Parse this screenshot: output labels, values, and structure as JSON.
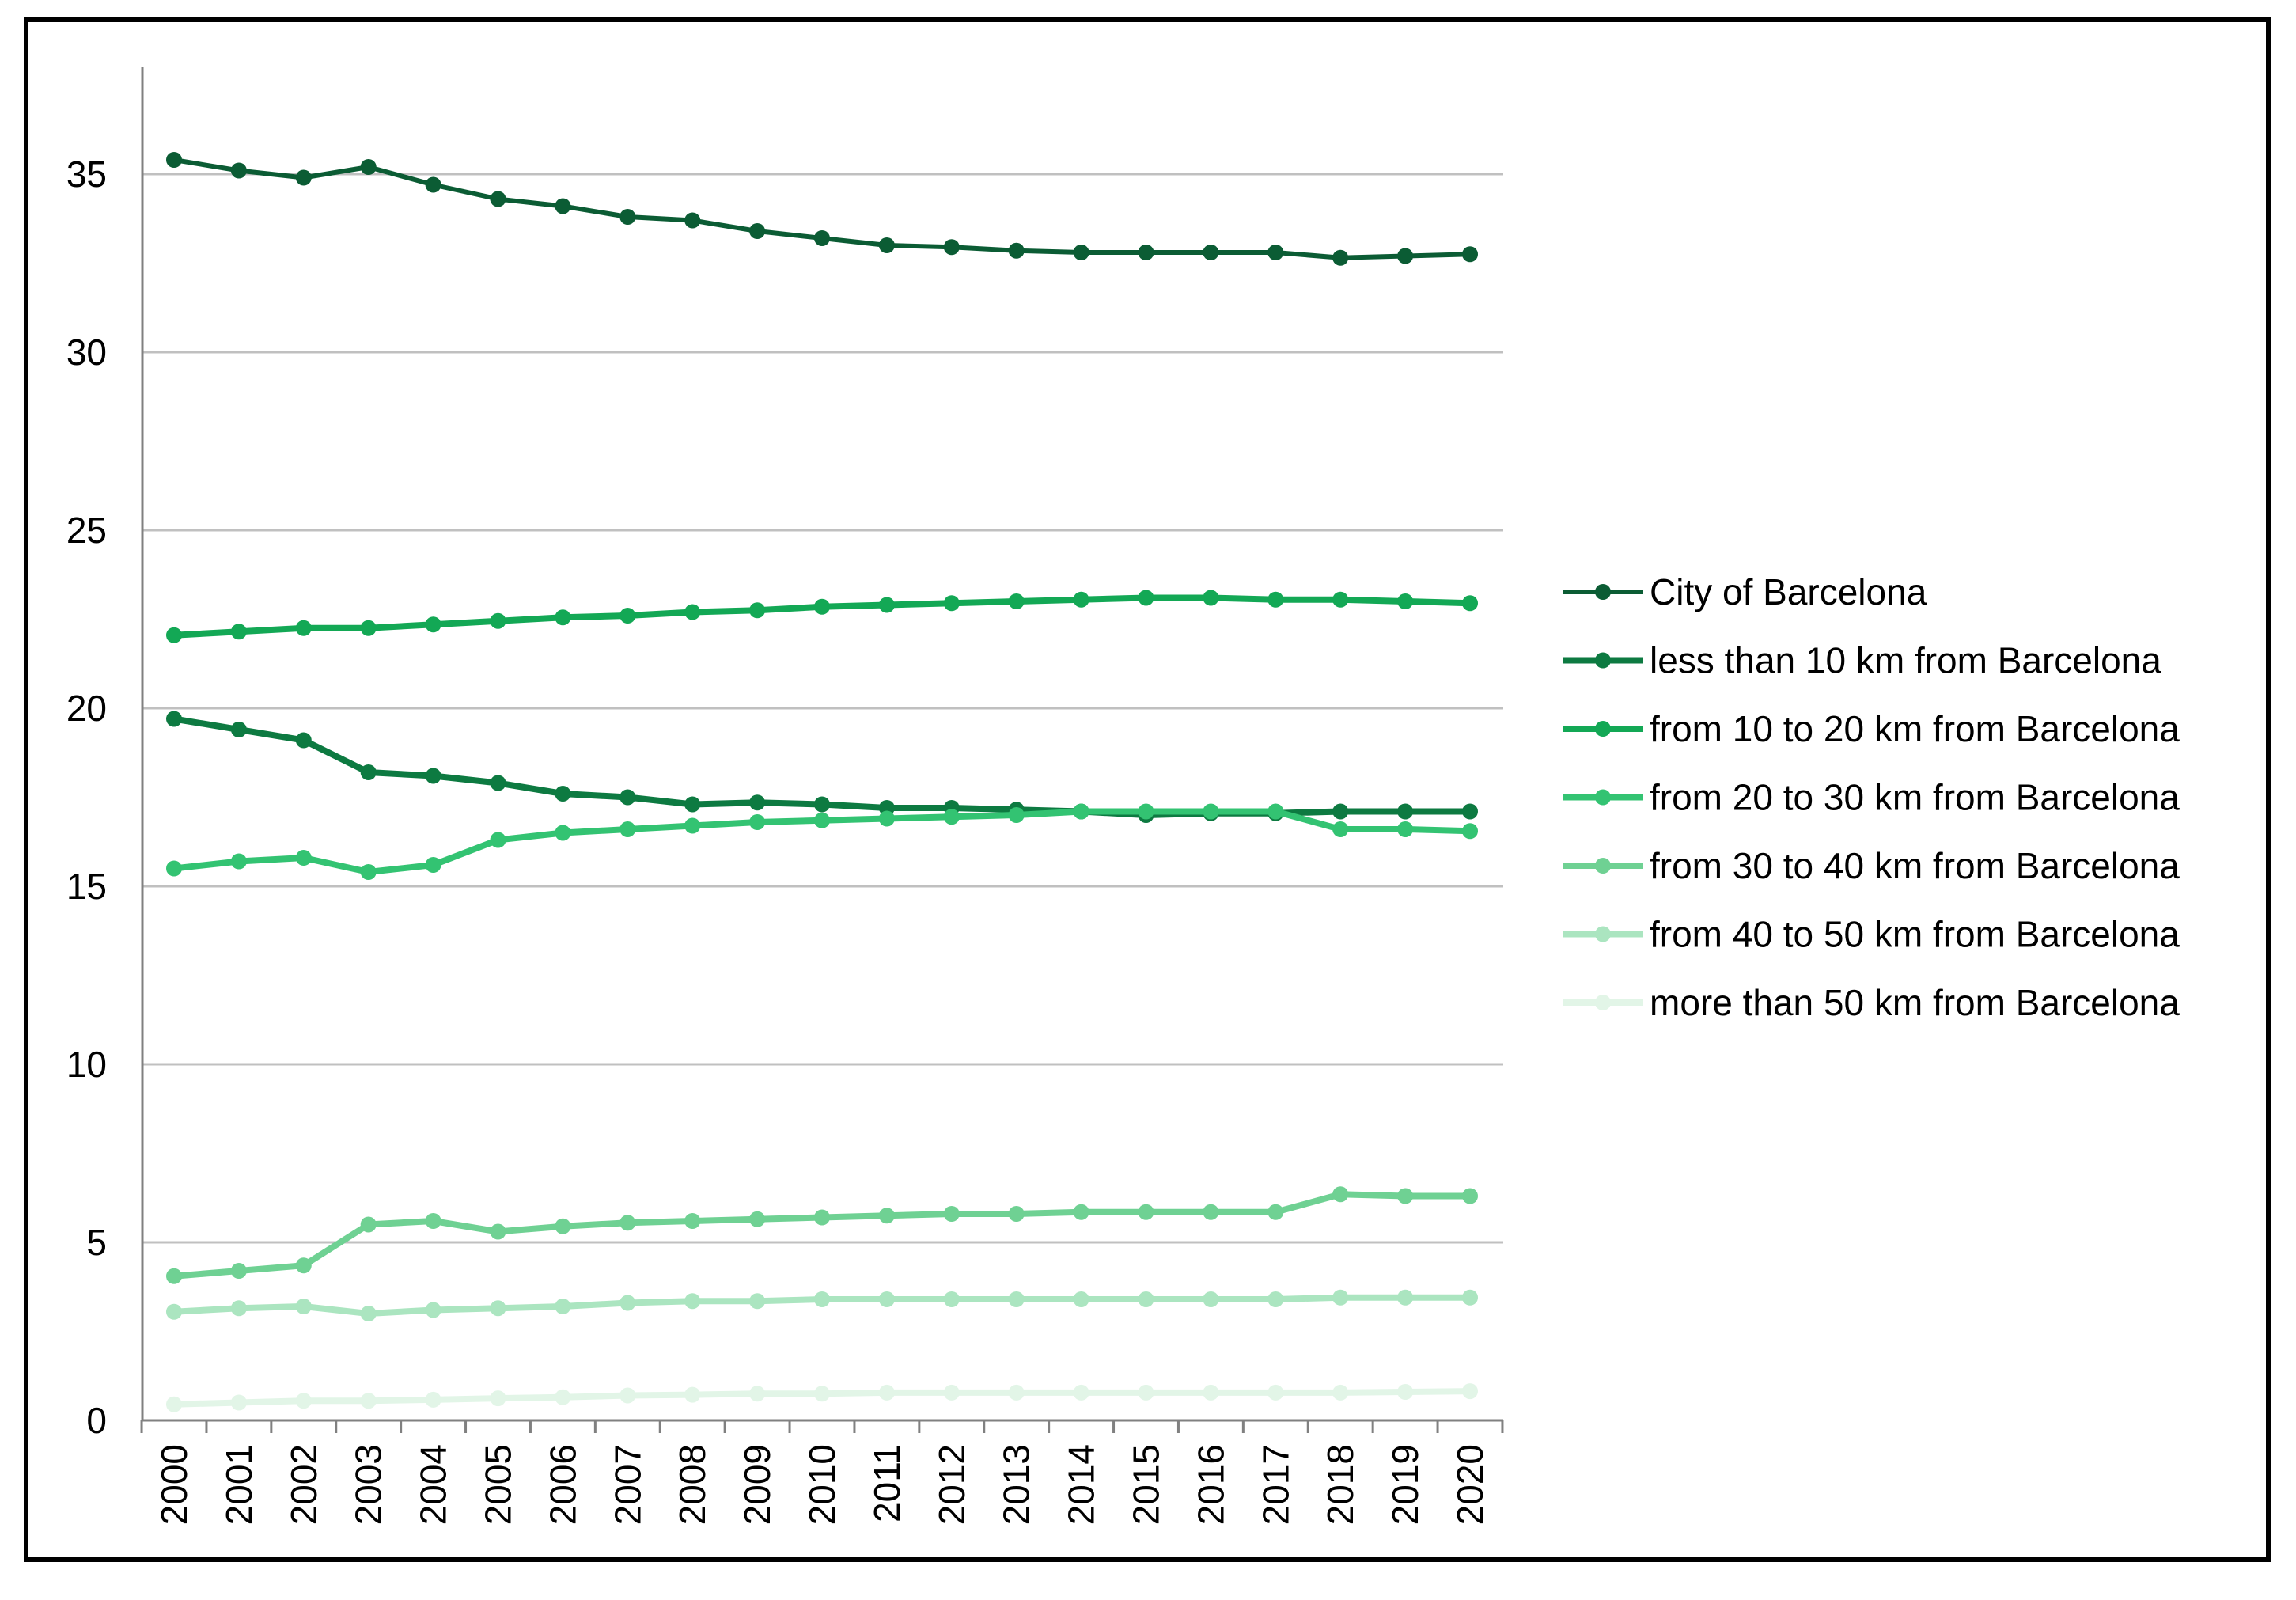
{
  "chart_data": {
    "type": "line",
    "title": "",
    "xlabel": "",
    "ylabel": "",
    "ylim": [
      0,
      38
    ],
    "yticks": [
      0,
      5,
      10,
      15,
      20,
      25,
      30,
      35
    ],
    "grid": true,
    "legend_position": "right",
    "x": [
      "2000",
      "2001",
      "2002",
      "2003",
      "2004",
      "2005",
      "2006",
      "2007",
      "2008",
      "2009",
      "2010",
      "2011",
      "2012",
      "2013",
      "2014",
      "2015",
      "2016",
      "2017",
      "2018",
      "2019",
      "2020"
    ],
    "series": [
      {
        "name": "City of Barcelona",
        "color": "#0b5c34",
        "values": [
          35.4,
          35.1,
          34.9,
          35.2,
          34.7,
          34.3,
          34.1,
          33.8,
          33.7,
          33.4,
          33.2,
          33.0,
          32.95,
          32.85,
          32.8,
          32.8,
          32.8,
          32.8,
          32.65,
          32.7,
          32.75
        ]
      },
      {
        "name": "less than 10 km from Barcelona",
        "color": "#0d7a41",
        "values": [
          19.7,
          19.4,
          19.1,
          18.2,
          18.1,
          17.9,
          17.6,
          17.5,
          17.3,
          17.35,
          17.3,
          17.2,
          17.2,
          17.15,
          17.1,
          17.0,
          17.05,
          17.05,
          17.1,
          17.1,
          17.1
        ]
      },
      {
        "name": "from 10 to 20 km from Barcelona",
        "color": "#13a855",
        "values": [
          22.05,
          22.15,
          22.25,
          22.25,
          22.35,
          22.45,
          22.55,
          22.6,
          22.7,
          22.75,
          22.85,
          22.9,
          22.95,
          23.0,
          23.05,
          23.1,
          23.1,
          23.05,
          23.05,
          23.0,
          22.95
        ]
      },
      {
        "name": "from 20 to 30 km from Barcelona",
        "color": "#33c372",
        "values": [
          15.5,
          15.7,
          15.8,
          15.4,
          15.6,
          16.3,
          16.5,
          16.6,
          16.7,
          16.8,
          16.85,
          16.9,
          16.95,
          17.0,
          17.1,
          17.1,
          17.1,
          17.1,
          16.6,
          16.6,
          16.55
        ]
      },
      {
        "name": "from 30 to 40 km from Barcelona",
        "color": "#6fd193",
        "values": [
          4.05,
          4.2,
          4.35,
          5.5,
          5.6,
          5.3,
          5.45,
          5.55,
          5.6,
          5.65,
          5.7,
          5.75,
          5.8,
          5.8,
          5.85,
          5.85,
          5.85,
          5.85,
          6.35,
          6.3,
          6.3
        ]
      },
      {
        "name": "from 40 to 50 km from Barcelona",
        "color": "#abe5c0",
        "values": [
          3.05,
          3.15,
          3.2,
          3.0,
          3.1,
          3.15,
          3.2,
          3.3,
          3.35,
          3.35,
          3.4,
          3.4,
          3.4,
          3.4,
          3.4,
          3.4,
          3.4,
          3.4,
          3.45,
          3.45,
          3.45
        ]
      },
      {
        "name": "more than 50 km from Barcelona",
        "color": "#e2f5e7",
        "values": [
          0.45,
          0.5,
          0.55,
          0.55,
          0.58,
          0.62,
          0.65,
          0.7,
          0.72,
          0.75,
          0.75,
          0.78,
          0.78,
          0.78,
          0.78,
          0.78,
          0.78,
          0.78,
          0.78,
          0.8,
          0.82
        ]
      }
    ]
  }
}
